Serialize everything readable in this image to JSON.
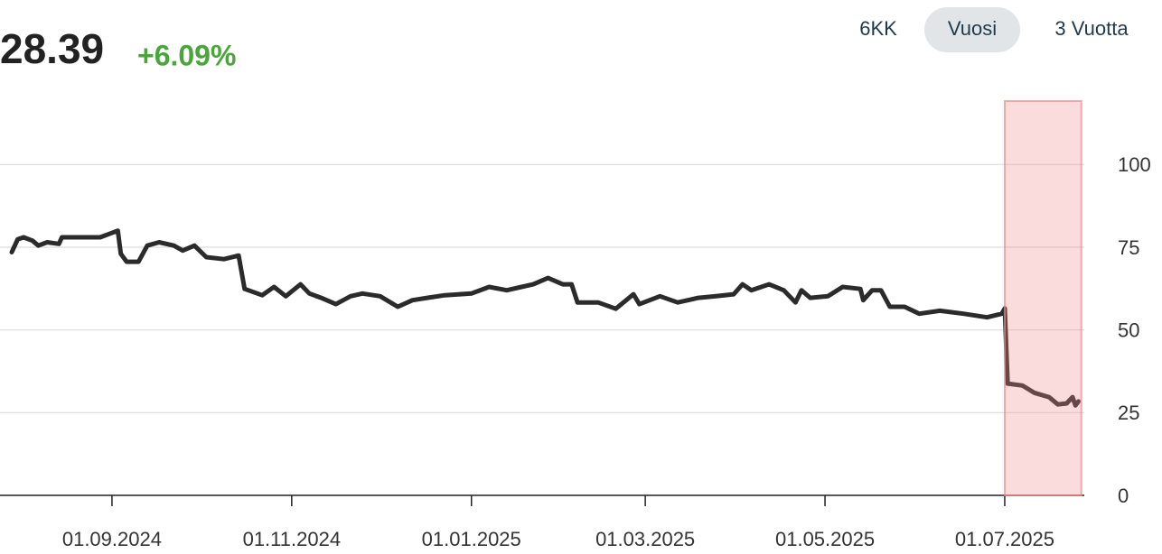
{
  "header": {
    "price": "28.39",
    "change": "+6.09%"
  },
  "range_buttons": {
    "options": [
      "6KK",
      "Vuosi",
      "3 Vuotta"
    ],
    "selected": 1
  },
  "chart_data": {
    "type": "line",
    "x": [
      "29.07.2024",
      "31.07.2024",
      "02.08.2024",
      "05.08.2024",
      "07.08.2024",
      "10.08.2024",
      "14.08.2024",
      "15.08.2024",
      "19.08.2024",
      "24.08.2024",
      "28.08.2024",
      "31.08.2024",
      "03.09.2024",
      "04.09.2024",
      "06.09.2024",
      "10.09.2024",
      "13.09.2024",
      "17.09.2024",
      "22.09.2024",
      "25.09.2024",
      "29.09.2024",
      "03.10.2024",
      "09.10.2024",
      "14.10.2024",
      "16.10.2024",
      "22.10.2024",
      "26.10.2024",
      "30.10.2024",
      "04.11.2024",
      "07.11.2024",
      "11.11.2024",
      "16.11.2024",
      "21.11.2024",
      "25.11.2024",
      "01.12.2024",
      "07.12.2024",
      "12.12.2024",
      "17.12.2024",
      "23.12.2024",
      "01.01.2025",
      "07.01.2025",
      "13.01.2025",
      "18.01.2025",
      "22.01.2025",
      "27.01.2025",
      "01.02.2025",
      "04.02.2025",
      "06.02.2025",
      "13.02.2025",
      "19.02.2025",
      "25.02.2025",
      "27.02.2025",
      "06.03.2025",
      "12.03.2025",
      "19.03.2025",
      "25.03.2025",
      "31.03.2025",
      "03.04.2025",
      "06.04.2025",
      "12.04.2025",
      "17.04.2025",
      "21.04.2025",
      "23.04.2025",
      "26.04.2025",
      "02.05.2025",
      "07.05.2025",
      "13.05.2025",
      "14.05.2025",
      "17.05.2025",
      "20.05.2025",
      "23.05.2025",
      "28.05.2025",
      "02.06.2025",
      "09.06.2025",
      "17.06.2025",
      "25.06.2025",
      "30.06.2025",
      "01.07.2025",
      "02.07.2025",
      "07.07.2025",
      "11.07.2025",
      "16.07.2025",
      "19.07.2025",
      "22.07.2025",
      "24.07.2025",
      "25.07.2025",
      "26.07.2025"
    ],
    "values": [
      73.5,
      77.4,
      78,
      77,
      75.5,
      76.5,
      76,
      78,
      78,
      78,
      78,
      79,
      80,
      73,
      70.6,
      70.6,
      75.5,
      76.5,
      75.5,
      74,
      75.5,
      72,
      71.4,
      72.5,
      62.4,
      60.5,
      63,
      60.2,
      63.8,
      61,
      59.7,
      57.8,
      60.2,
      61,
      60.2,
      57,
      59,
      59.7,
      60.5,
      61,
      63,
      62,
      63,
      63.8,
      65.7,
      63.8,
      63.8,
      58.3,
      58.3,
      56.4,
      60.8,
      57.8,
      60.2,
      58.3,
      59.7,
      60.2,
      60.8,
      63.8,
      62,
      63.8,
      62,
      58.3,
      62,
      59.7,
      60.2,
      63,
      62.4,
      59,
      62,
      62,
      57,
      57,
      54.9,
      55.8,
      54.9,
      53.8,
      54.9,
      56.5,
      33.8,
      33.2,
      31,
      29.7,
      27.5,
      27.8,
      29.7,
      27.2,
      28.39
    ],
    "color": "#2b2b2b",
    "xlim": [
      "25.07.2024",
      "28.07.2025"
    ],
    "xticks": [
      "01.09.2024",
      "01.11.2024",
      "01.01.2025",
      "01.03.2025",
      "01.05.2025",
      "01.07.2025"
    ],
    "ylim": [
      0,
      120
    ],
    "yticks": [
      0,
      25,
      50,
      75,
      100
    ],
    "grid": true,
    "highlight": {
      "from": "01.07.2025",
      "to": "27.07.2025",
      "color": "#f08a8a"
    }
  }
}
